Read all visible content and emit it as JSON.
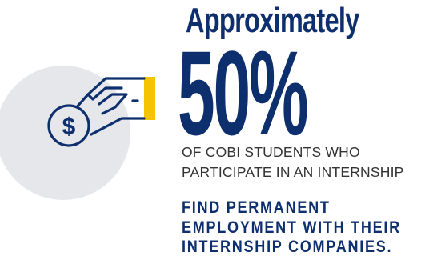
{
  "colors": {
    "navy": "#0e2f6e",
    "accent_yellow": "#f5c400",
    "circle_gray": "#e6e7ea",
    "text_gray": "#333333"
  },
  "icons": [
    "gray-circle-backdrop",
    "hand-holding-coin-icon",
    "dollar-sign-icon",
    "yellow-cuff-accent"
  ],
  "headline": "Approximately",
  "stat": "50%",
  "subtext": {
    "line1": "OF COBI STUDENTS WHO",
    "line2": "PARTICIPATE IN AN INTERNSHIP"
  },
  "conclusion": {
    "line1": "FIND PERMANENT",
    "line2": "EMPLOYMENT WITH THEIR",
    "line3": "INTERNSHIP COMPANIES."
  }
}
